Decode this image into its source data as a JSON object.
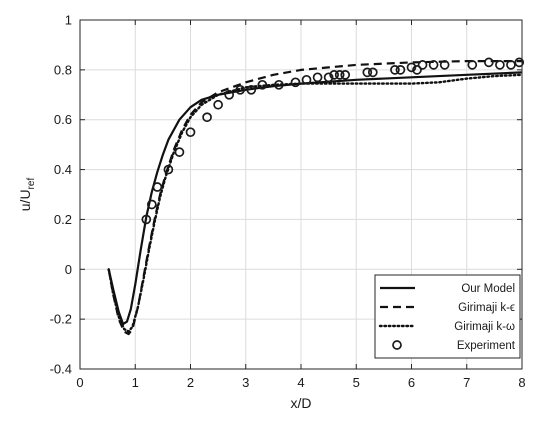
{
  "chart_data": {
    "type": "line",
    "xlabel": "x/D",
    "ylabel": {
      "main": "u/U",
      "subscript": "ref"
    },
    "xlim": [
      0,
      8
    ],
    "ylim": [
      -0.4,
      1
    ],
    "xticks": [
      "0",
      "1",
      "2",
      "3",
      "4",
      "5",
      "6",
      "7",
      "8"
    ],
    "yticks": [
      "-0.4",
      "-0.2",
      "0",
      "0.2",
      "0.4",
      "0.6",
      "0.8",
      "1"
    ],
    "grid": true,
    "legend_position": "bottom-right",
    "series": [
      {
        "name": "Our Model",
        "style": "solid",
        "x": [
          0.52,
          0.6,
          0.7,
          0.78,
          0.85,
          0.92,
          1.0,
          1.1,
          1.2,
          1.3,
          1.4,
          1.5,
          1.6,
          1.8,
          2.0,
          2.2,
          2.5,
          3.0,
          3.5,
          4.0,
          5.0,
          6.0,
          7.0,
          8.0
        ],
        "y": [
          0.0,
          -0.08,
          -0.17,
          -0.22,
          -0.21,
          -0.16,
          -0.06,
          0.08,
          0.21,
          0.31,
          0.39,
          0.46,
          0.52,
          0.6,
          0.65,
          0.68,
          0.7,
          0.72,
          0.735,
          0.745,
          0.76,
          0.77,
          0.78,
          0.79
        ]
      },
      {
        "name": "Girimaji k-ϵ",
        "style": "dashed",
        "x": [
          0.52,
          0.6,
          0.7,
          0.8,
          0.88,
          0.95,
          1.05,
          1.15,
          1.25,
          1.35,
          1.45,
          1.55,
          1.7,
          1.85,
          2.0,
          2.2,
          2.5,
          3.0,
          3.5,
          4.0,
          4.5,
          5.0,
          6.0,
          7.0,
          8.0
        ],
        "y": [
          0.0,
          -0.1,
          -0.2,
          -0.25,
          -0.26,
          -0.24,
          -0.15,
          -0.03,
          0.09,
          0.2,
          0.3,
          0.38,
          0.48,
          0.56,
          0.62,
          0.67,
          0.71,
          0.75,
          0.78,
          0.8,
          0.81,
          0.82,
          0.83,
          0.835,
          0.835
        ]
      },
      {
        "name": "Girimaji k-ω",
        "style": "dotted",
        "x": [
          0.52,
          0.6,
          0.7,
          0.8,
          0.88,
          0.95,
          1.05,
          1.15,
          1.25,
          1.35,
          1.45,
          1.55,
          1.7,
          1.85,
          2.0,
          2.2,
          2.5,
          3.0,
          3.5,
          4.0,
          5.0,
          6.0,
          6.5,
          7.0,
          7.5,
          8.0
        ],
        "y": [
          0.0,
          -0.1,
          -0.19,
          -0.24,
          -0.25,
          -0.23,
          -0.15,
          -0.04,
          0.08,
          0.19,
          0.29,
          0.37,
          0.47,
          0.55,
          0.61,
          0.66,
          0.7,
          0.73,
          0.74,
          0.745,
          0.745,
          0.745,
          0.75,
          0.765,
          0.775,
          0.78
        ]
      },
      {
        "name": "Experiment",
        "style": "circles",
        "x": [
          1.2,
          1.3,
          1.4,
          1.6,
          1.8,
          2.0,
          2.3,
          2.5,
          2.7,
          2.9,
          3.1,
          3.3,
          3.6,
          3.9,
          4.1,
          4.3,
          4.5,
          4.6,
          4.7,
          4.8,
          5.2,
          5.3,
          5.7,
          5.8,
          6.0,
          6.1,
          6.2,
          6.4,
          6.6,
          7.1,
          7.4,
          7.6,
          7.8,
          7.95
        ],
        "y": [
          0.2,
          0.26,
          0.33,
          0.4,
          0.47,
          0.55,
          0.61,
          0.66,
          0.7,
          0.72,
          0.72,
          0.74,
          0.74,
          0.75,
          0.76,
          0.77,
          0.77,
          0.78,
          0.78,
          0.78,
          0.79,
          0.79,
          0.8,
          0.8,
          0.81,
          0.8,
          0.82,
          0.82,
          0.82,
          0.82,
          0.83,
          0.82,
          0.82,
          0.83
        ]
      }
    ]
  }
}
